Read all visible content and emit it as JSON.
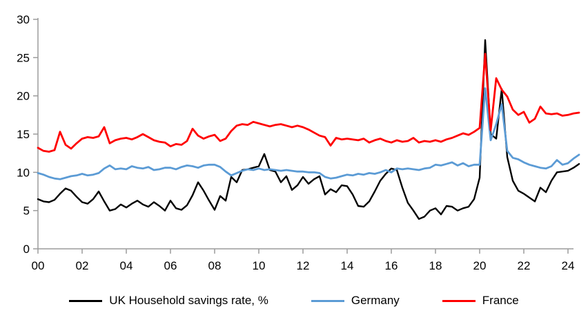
{
  "chart_data": {
    "type": "line",
    "title": "",
    "x_tick_labels": [
      "00",
      "02",
      "04",
      "06",
      "08",
      "10",
      "12",
      "14",
      "16",
      "18",
      "20",
      "22",
      "24"
    ],
    "x_frequency": "quarterly",
    "y_ticks": [
      0,
      5,
      10,
      15,
      20,
      25,
      30
    ],
    "ylim": [
      0,
      30
    ],
    "grid": false,
    "legend_position": "bottom",
    "axis_color": "#9b9b9b",
    "series": [
      {
        "name": "UK Household savings rate, %",
        "color": "#000000",
        "values": [
          6.5,
          6.2,
          6.1,
          6.4,
          7.2,
          7.9,
          7.6,
          6.8,
          6.1,
          5.9,
          6.5,
          7.5,
          6.2,
          5.0,
          5.2,
          5.8,
          5.4,
          5.9,
          6.3,
          5.8,
          5.5,
          6.1,
          5.6,
          5.0,
          6.3,
          5.3,
          5.1,
          5.7,
          7.0,
          8.7,
          7.6,
          6.3,
          5.1,
          6.9,
          6.3,
          9.4,
          8.7,
          10.3,
          10.4,
          10.6,
          10.8,
          12.4,
          10.3,
          10.1,
          8.7,
          9.5,
          7.7,
          8.3,
          9.4,
          8.5,
          9.1,
          9.5,
          7.1,
          7.8,
          7.4,
          8.3,
          8.2,
          7.1,
          5.6,
          5.5,
          6.2,
          7.5,
          8.9,
          9.8,
          10.5,
          10.3,
          8.0,
          6.0,
          5.0,
          3.9,
          4.2,
          5.0,
          5.3,
          4.5,
          5.6,
          5.5,
          5.0,
          5.3,
          5.5,
          6.5,
          9.3,
          27.3,
          15.0,
          14.4,
          20.9,
          12.0,
          8.9,
          7.6,
          7.2,
          6.7,
          6.2,
          8.0,
          7.4,
          8.9,
          10.0,
          10.1,
          10.2,
          10.6,
          11.1
        ]
      },
      {
        "name": "Germany",
        "color": "#5B9BD5",
        "values": [
          9.9,
          9.7,
          9.4,
          9.2,
          9.1,
          9.3,
          9.5,
          9.6,
          9.8,
          9.6,
          9.7,
          9.9,
          10.5,
          10.9,
          10.4,
          10.5,
          10.4,
          10.8,
          10.6,
          10.5,
          10.7,
          10.3,
          10.4,
          10.6,
          10.6,
          10.4,
          10.7,
          10.9,
          10.8,
          10.6,
          10.9,
          11.0,
          11.0,
          10.7,
          10.1,
          9.6,
          9.9,
          10.2,
          10.4,
          10.3,
          10.5,
          10.3,
          10.4,
          10.3,
          10.2,
          10.3,
          10.2,
          10.1,
          10.1,
          10.0,
          10.0,
          9.9,
          9.4,
          9.2,
          9.3,
          9.5,
          9.7,
          9.6,
          9.8,
          9.7,
          9.9,
          9.8,
          10.0,
          10.3,
          10.0,
          10.5,
          10.4,
          10.5,
          10.4,
          10.3,
          10.5,
          10.6,
          11.0,
          10.9,
          11.1,
          11.3,
          10.9,
          11.2,
          10.8,
          11.0,
          11.0,
          21.0,
          14.2,
          16.3,
          18.9,
          12.8,
          11.9,
          11.7,
          11.3,
          11.0,
          10.8,
          10.6,
          10.5,
          10.8,
          11.6,
          11.0,
          11.2,
          11.8,
          12.3
        ]
      },
      {
        "name": "France",
        "color": "#FF0000",
        "values": [
          13.2,
          12.8,
          12.7,
          12.9,
          15.3,
          13.6,
          13.1,
          13.8,
          14.4,
          14.6,
          14.5,
          14.7,
          15.9,
          13.8,
          14.2,
          14.4,
          14.5,
          14.3,
          14.6,
          15.0,
          14.6,
          14.2,
          14.0,
          13.9,
          13.4,
          13.7,
          13.6,
          14.1,
          15.7,
          14.8,
          14.4,
          14.7,
          14.9,
          14.1,
          14.4,
          15.4,
          16.1,
          16.3,
          16.2,
          16.6,
          16.4,
          16.2,
          16.0,
          16.2,
          16.3,
          16.1,
          15.9,
          16.1,
          15.9,
          15.6,
          15.2,
          14.8,
          14.6,
          13.5,
          14.5,
          14.3,
          14.4,
          14.3,
          14.2,
          14.4,
          13.9,
          14.2,
          14.4,
          14.1,
          13.9,
          14.2,
          14.0,
          14.1,
          14.5,
          13.9,
          14.1,
          14.0,
          14.2,
          14.0,
          14.3,
          14.5,
          14.8,
          15.1,
          14.9,
          15.3,
          15.8,
          25.5,
          15.5,
          22.3,
          20.8,
          19.9,
          18.2,
          17.5,
          17.9,
          16.5,
          17.0,
          18.6,
          17.7,
          17.6,
          17.7,
          17.4,
          17.5,
          17.7,
          17.8
        ]
      }
    ]
  },
  "legend": {
    "items": [
      {
        "label": "UK Household savings rate, %"
      },
      {
        "label": "Germany"
      },
      {
        "label": "France"
      }
    ]
  }
}
